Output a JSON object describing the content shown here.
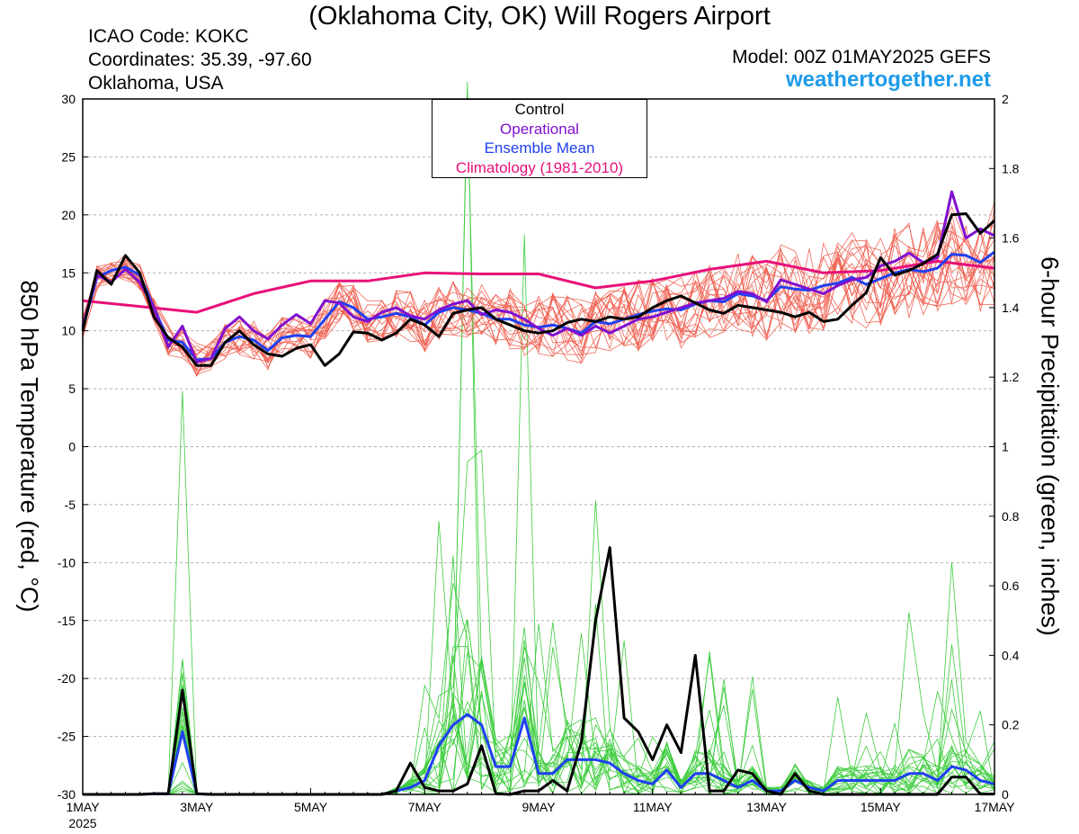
{
  "header": {
    "title": "(Oklahoma City, OK) Will Rogers Airport",
    "icao": "ICAO Code: KOKC",
    "coords": "Coordinates: 35.39, -97.60",
    "region": "Oklahoma, USA",
    "model": "Model: 00Z 01MAY2025 GEFS",
    "brand": "weathertogether.net"
  },
  "legend": {
    "control": "Control",
    "operational": "Operational",
    "ensemble_mean": "Ensemble Mean",
    "climatology": "Climatology (1981-2010)"
  },
  "colors": {
    "control": "#000000",
    "operational": "#8010d0",
    "ensemble_mean": "#2040f0",
    "climatology": "#e8107a",
    "members_temp": "#f05a4a",
    "members_precip": "#3ccc3c",
    "grid": "#b0b0b0",
    "brand": "#1e9be8"
  },
  "chart_data": {
    "type": "line",
    "title": "(Oklahoma City, OK) Will Rogers Airport",
    "ylabel": "850 hPa Temperature (red, °C)",
    "y2label": "6-hour Precipitation (green, inches)",
    "x_unit_days": "days since 1MAY 00Z",
    "xlim": [
      0,
      16
    ],
    "ylim": [
      -30,
      30
    ],
    "y2lim": [
      0,
      2
    ],
    "x_ticks": [
      {
        "x": 0,
        "label": "1MAY",
        "sub": "2025"
      },
      {
        "x": 2,
        "label": "3MAY"
      },
      {
        "x": 4,
        "label": "5MAY"
      },
      {
        "x": 6,
        "label": "7MAY"
      },
      {
        "x": 8,
        "label": "9MAY"
      },
      {
        "x": 10,
        "label": "11MAY"
      },
      {
        "x": 12,
        "label": "13MAY"
      },
      {
        "x": 14,
        "label": "15MAY"
      },
      {
        "x": 16,
        "label": "17MAY"
      }
    ],
    "y_ticks": [
      30,
      25,
      20,
      15,
      10,
      5,
      0,
      -5,
      -10,
      -15,
      -20,
      -25,
      -30
    ],
    "y2_ticks": [
      "2",
      "1.8",
      "1.6",
      "1.4",
      "1.2",
      "1",
      "0.8",
      "0.6",
      "0.4",
      "0.2",
      "0"
    ],
    "grid": true,
    "legend_position": "top-center",
    "series": [
      {
        "name": "Climatology (1981-2010)",
        "axis": "temp",
        "color": "#e8107a",
        "width": 3,
        "x": [
          0,
          1,
          2,
          3,
          4,
          5,
          6,
          7,
          8,
          9,
          10,
          11,
          12,
          13,
          14,
          15,
          16
        ],
        "y": [
          12.6,
          12.1,
          11.6,
          13.2,
          14.3,
          14.3,
          15.0,
          14.9,
          14.9,
          13.7,
          14.3,
          15.3,
          16.0,
          15.0,
          15.2,
          16.0,
          15.4
        ]
      },
      {
        "name": "Ensemble Mean",
        "axis": "temp",
        "color": "#2040f0",
        "width": 3,
        "x": [
          0,
          0.25,
          0.5,
          0.75,
          1,
          1.25,
          1.5,
          1.75,
          2,
          2.25,
          2.5,
          2.75,
          3,
          3.25,
          3.5,
          3.75,
          4,
          4.25,
          4.5,
          4.75,
          5,
          5.25,
          5.5,
          5.75,
          6,
          6.25,
          6.5,
          6.75,
          7,
          7.25,
          7.5,
          7.75,
          8,
          8.25,
          8.5,
          8.75,
          9,
          9.25,
          9.5,
          9.75,
          10,
          10.25,
          10.5,
          10.75,
          11,
          11.25,
          11.5,
          11.75,
          12,
          12.25,
          12.5,
          12.75,
          13,
          13.25,
          13.5,
          13.75,
          14,
          14.25,
          14.5,
          14.75,
          15,
          15.25,
          15.5,
          15.75,
          16
        ],
        "y": [
          10.2,
          14.6,
          15.2,
          15.5,
          14.8,
          12.0,
          9.2,
          9.0,
          7.5,
          7.6,
          9.0,
          9.5,
          9.2,
          8.3,
          9.4,
          9.6,
          9.5,
          11.0,
          12.5,
          12.0,
          11.0,
          11.2,
          11.5,
          11.2,
          10.5,
          11.6,
          12.0,
          11.8,
          11.5,
          11.0,
          11.0,
          10.5,
          10.3,
          10.5,
          10.2,
          9.8,
          10.8,
          10.6,
          11.0,
          11.4,
          11.7,
          11.9,
          11.8,
          12.3,
          12.6,
          12.5,
          13.2,
          13.0,
          12.6,
          13.8,
          13.6,
          13.5,
          13.9,
          14.1,
          14.6,
          14.0,
          14.5,
          15.0,
          15.3,
          15.1,
          15.4,
          16.6,
          16.5,
          15.9,
          16.8
        ]
      },
      {
        "name": "Operational",
        "axis": "temp",
        "color": "#8010d0",
        "width": 3,
        "x": [
          0,
          0.25,
          0.5,
          0.75,
          1,
          1.25,
          1.5,
          1.75,
          2,
          2.25,
          2.5,
          2.75,
          3,
          3.25,
          3.5,
          3.75,
          4,
          4.25,
          4.5,
          4.75,
          5,
          5.25,
          5.5,
          5.75,
          6,
          6.25,
          6.5,
          6.75,
          7,
          7.25,
          7.5,
          7.75,
          8,
          8.25,
          8.5,
          8.75,
          9,
          9.25,
          9.5,
          9.75,
          10,
          10.25,
          10.5,
          10.75,
          11,
          11.25,
          11.5,
          11.75,
          12,
          12.25,
          12.5,
          12.75,
          13,
          13.25,
          13.5,
          13.75,
          14,
          14.25,
          14.5,
          14.75,
          15,
          15.25,
          15.5,
          15.75,
          16
        ],
        "y": [
          10.4,
          14.8,
          14.2,
          15.3,
          14.2,
          12.0,
          8.6,
          10.4,
          7.3,
          7.6,
          10.2,
          11.2,
          10.0,
          9.3,
          10.5,
          11.4,
          10.6,
          12.6,
          12.4,
          11.2,
          10.8,
          11.6,
          12.0,
          11.3,
          11.0,
          11.8,
          12.3,
          12.6,
          11.4,
          11.8,
          11.6,
          11.0,
          10.2,
          9.6,
          10.2,
          9.6,
          10.4,
          9.8,
          10.4,
          11.0,
          11.2,
          11.6,
          12.0,
          12.4,
          12.6,
          12.8,
          13.4,
          13.2,
          12.5,
          14.4,
          14.0,
          13.6,
          13.2,
          13.9,
          14.4,
          14.6,
          15.6,
          16.0,
          16.7,
          15.9,
          16.3,
          22.0,
          18.0,
          18.8,
          18.2
        ]
      },
      {
        "name": "Control",
        "axis": "temp",
        "color": "#000000",
        "width": 3,
        "x": [
          0,
          0.25,
          0.5,
          0.75,
          1,
          1.25,
          1.5,
          1.75,
          2,
          2.25,
          2.5,
          2.75,
          3,
          3.25,
          3.5,
          3.75,
          4,
          4.25,
          4.5,
          4.75,
          5,
          5.25,
          5.5,
          5.75,
          6,
          6.25,
          6.5,
          6.75,
          7,
          7.25,
          7.5,
          7.75,
          8,
          8.25,
          8.5,
          8.75,
          9,
          9.25,
          9.5,
          9.75,
          10,
          10.25,
          10.5,
          10.75,
          11,
          11.25,
          11.5,
          11.75,
          12,
          12.25,
          12.5,
          12.75,
          13,
          13.25,
          13.5,
          13.75,
          14,
          14.25,
          14.5,
          14.75,
          15,
          15.25,
          15.5,
          15.75,
          16
        ],
        "y": [
          10.0,
          15.2,
          14.0,
          16.5,
          15.0,
          11.2,
          9.4,
          8.6,
          7.0,
          7.0,
          9.0,
          10.0,
          8.8,
          8.0,
          7.8,
          8.5,
          8.8,
          7.0,
          8.0,
          9.9,
          9.8,
          9.2,
          9.8,
          11.0,
          10.5,
          9.5,
          11.5,
          11.8,
          12.0,
          11.0,
          10.5,
          10.0,
          9.8,
          10.0,
          10.7,
          11.0,
          10.8,
          11.2,
          11.0,
          11.2,
          12.0,
          12.6,
          13.0,
          12.4,
          11.8,
          11.5,
          12.2,
          12.0,
          11.8,
          11.6,
          11.2,
          11.6,
          10.8,
          11.0,
          12.2,
          13.3,
          16.3,
          14.8,
          15.2,
          15.8,
          16.6,
          20.0,
          20.1,
          18.4,
          19.5
        ]
      },
      {
        "name": "Ensemble Mean",
        "axis": "precip",
        "color": "#2040f0",
        "width": 3,
        "x": [
          0,
          0.25,
          0.5,
          0.75,
          1,
          1.25,
          1.5,
          1.75,
          2,
          2.25,
          2.5,
          2.75,
          3,
          3.25,
          3.5,
          3.75,
          4,
          4.25,
          4.5,
          4.75,
          5,
          5.25,
          5.5,
          5.75,
          6,
          6.25,
          6.5,
          6.75,
          7,
          7.25,
          7.5,
          7.75,
          8,
          8.25,
          8.5,
          8.75,
          9,
          9.25,
          9.5,
          9.75,
          10,
          10.25,
          10.5,
          10.75,
          11,
          11.25,
          11.5,
          11.75,
          12,
          12.25,
          12.5,
          12.75,
          13,
          13.25,
          13.5,
          13.75,
          14,
          14.25,
          14.5,
          14.75,
          15,
          15.25,
          15.5,
          15.75,
          16
        ],
        "y": [
          0,
          0,
          0,
          0,
          0,
          0.002,
          0.002,
          0.18,
          0.002,
          0,
          0,
          0,
          0,
          0,
          0,
          0,
          0,
          0,
          0,
          0,
          0,
          0,
          0.01,
          0.02,
          0.04,
          0.14,
          0.2,
          0.23,
          0.2,
          0.08,
          0.08,
          0.22,
          0.06,
          0.06,
          0.1,
          0.1,
          0.1,
          0.09,
          0.06,
          0.04,
          0.03,
          0.07,
          0.02,
          0.06,
          0.06,
          0.04,
          0.02,
          0.04,
          0.01,
          0.01,
          0.04,
          0.02,
          0.01,
          0.04,
          0.04,
          0.04,
          0.04,
          0.04,
          0.06,
          0.06,
          0.04,
          0.08,
          0.07,
          0.04,
          0.03
        ]
      },
      {
        "name": "Control",
        "axis": "precip",
        "color": "#000000",
        "width": 3,
        "x": [
          0,
          0.25,
          0.5,
          0.75,
          1,
          1.25,
          1.5,
          1.75,
          2,
          2.25,
          2.5,
          2.75,
          3,
          3.25,
          3.5,
          3.75,
          4,
          4.25,
          4.5,
          4.75,
          5,
          5.25,
          5.5,
          5.75,
          6,
          6.25,
          6.5,
          6.75,
          7,
          7.25,
          7.5,
          7.75,
          8,
          8.25,
          8.5,
          8.75,
          9,
          9.25,
          9.5,
          9.75,
          10,
          10.25,
          10.5,
          10.75,
          11,
          11.25,
          11.5,
          11.75,
          12,
          12.25,
          12.5,
          12.75,
          13,
          13.25,
          13.5,
          13.75,
          14,
          14.25,
          14.5,
          14.75,
          15,
          15.25,
          15.5,
          15.75,
          16
        ],
        "y": [
          0,
          0,
          0,
          0,
          0,
          0.002,
          0.002,
          0.3,
          0.002,
          0,
          0,
          0,
          0,
          0,
          0,
          0,
          0,
          0,
          0,
          0,
          0,
          0,
          0.01,
          0.09,
          0.02,
          0.01,
          0.01,
          0.03,
          0.14,
          0.002,
          0,
          0.01,
          0.01,
          0.04,
          0.01,
          0.15,
          0.5,
          0.71,
          0.22,
          0.18,
          0.1,
          0.2,
          0.12,
          0.4,
          0.01,
          0.01,
          0.07,
          0.06,
          0.01,
          0,
          0.06,
          0.01,
          0,
          0,
          0,
          0,
          0,
          0,
          0,
          0,
          0,
          0.05,
          0.05,
          0.001,
          0.001
        ]
      }
    ]
  }
}
